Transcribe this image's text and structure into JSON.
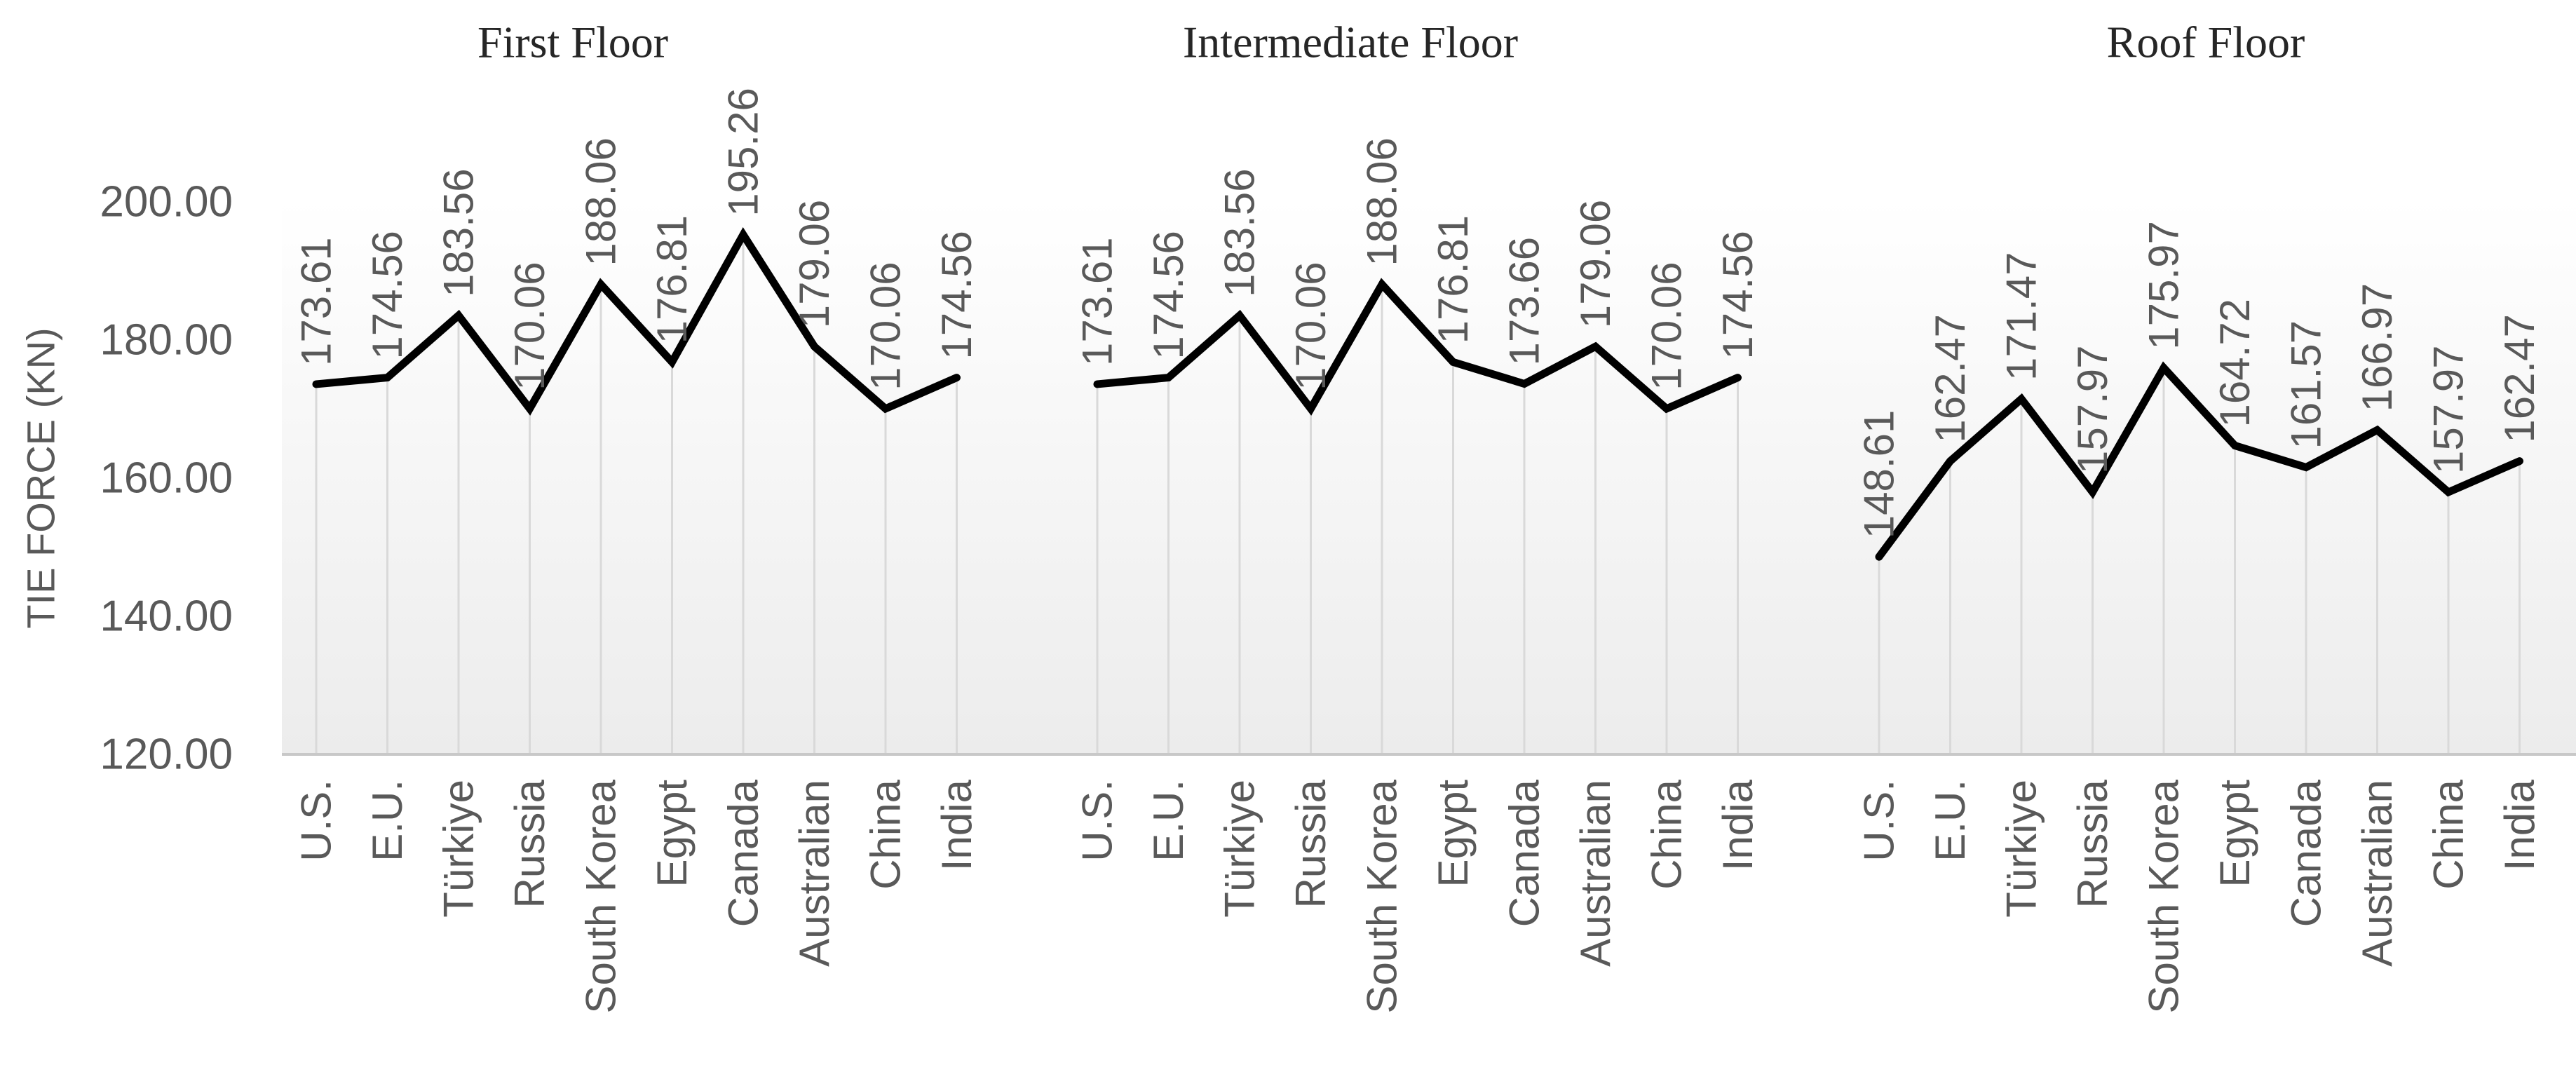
{
  "chart_data": {
    "type": "line",
    "ylabel": "TIE FORCE (KN)",
    "ylim": [
      120,
      200
    ],
    "yticks": [
      "120.00",
      "140.00",
      "160.00",
      "180.00",
      "200.00"
    ],
    "ytick_values": [
      120,
      140,
      160,
      180,
      200
    ],
    "grid": "vertical lines at each category",
    "line_color": "#000000",
    "grid_color": "#d9d9d9",
    "categories": [
      "U.S.",
      "E.U.",
      "Türkiye",
      "Russia",
      "South Korea",
      "Egypt",
      "Canada",
      "Australian",
      "China",
      "India"
    ],
    "panels": [
      {
        "title": "First Floor",
        "values": [
          173.61,
          174.56,
          183.56,
          170.06,
          188.06,
          176.81,
          195.26,
          179.06,
          170.06,
          174.56
        ],
        "labels": [
          "173.61",
          "174.56",
          "183.56",
          "170.06",
          "188.06",
          "176.81",
          "195.26",
          "179.06",
          "170.06",
          "174.56"
        ]
      },
      {
        "title": "Intermediate Floor",
        "values": [
          173.61,
          174.56,
          183.56,
          170.06,
          188.06,
          176.81,
          173.66,
          179.06,
          170.06,
          174.56
        ],
        "labels": [
          "173.61",
          "174.56",
          "183.56",
          "170.06",
          "188.06",
          "176.81",
          "173.66",
          "179.06",
          "170.06",
          "174.56"
        ]
      },
      {
        "title": "Roof Floor",
        "values": [
          148.61,
          162.47,
          171.47,
          157.97,
          175.97,
          164.72,
          161.57,
          166.97,
          157.97,
          162.47
        ],
        "labels": [
          "148.61",
          "162.47",
          "171.47",
          "157.97",
          "175.97",
          "164.72",
          "161.57",
          "166.97",
          "157.97",
          "162.47"
        ]
      }
    ]
  }
}
